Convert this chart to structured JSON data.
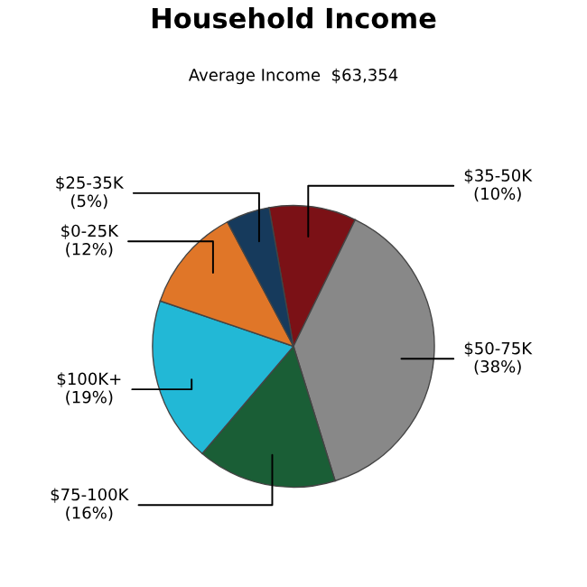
{
  "chart_data": {
    "type": "pie",
    "title": "Household Income",
    "subtitle": "Average Income  $63,354",
    "categories": [
      "$35-50K",
      "$50-75K",
      "$75-100K",
      "$100K+",
      "$0-25K",
      "$25-35K"
    ],
    "values": [
      10,
      38,
      16,
      19,
      12,
      5
    ],
    "value_labels": [
      "(10%)",
      "(38%)",
      "(16%)",
      "(19%)",
      "(12%)",
      "(5%)"
    ],
    "colors": [
      "#7b1116",
      "#888888",
      "#1a5e36",
      "#22b8d6",
      "#e07628",
      "#163a5c"
    ]
  }
}
